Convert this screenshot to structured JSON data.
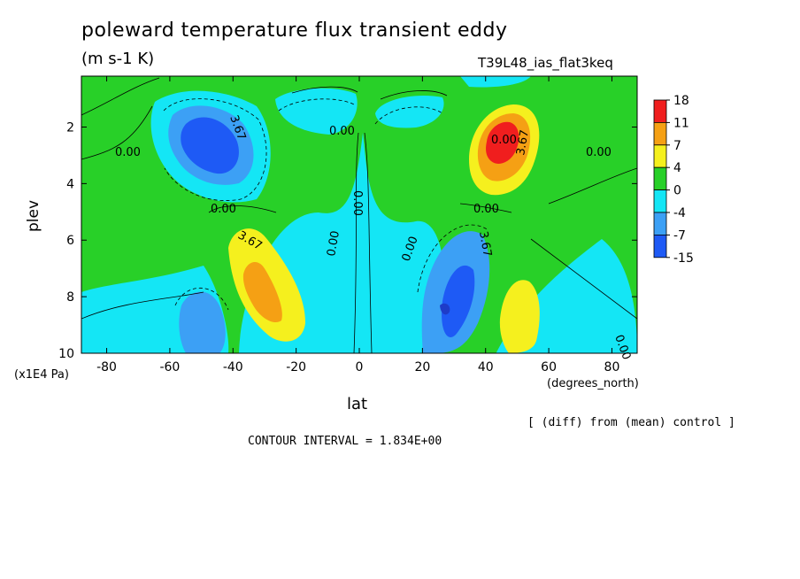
{
  "title": "poleward temperature flux transient eddy",
  "units": "(m s-1 K)",
  "experiment": "T39L48_ias_flat3keq",
  "footer": {
    "contour_interval": "CONTOUR INTERVAL = 1.834E+00",
    "diff_note": "[ (diff) from (mean) control ]"
  },
  "colors": {
    "red": "#f01e1e",
    "orange": "#f5a014",
    "yellow": "#f5f01e",
    "green": "#28d028",
    "cyan": "#14e6f5",
    "lightblue": "#3ca0f5",
    "blue": "#1e5af5",
    "darkblue": "#1e3cc8"
  },
  "chart_data": {
    "type": "heatmap",
    "subtype": "filled contour",
    "xlabel": "lat",
    "xunits": "(degrees_north)",
    "ylabel": "plev",
    "yunits": "(x1E4 Pa)",
    "xlim": [
      -88,
      88
    ],
    "ylim": [
      10,
      0.2
    ],
    "xticks": [
      -80,
      -60,
      -40,
      -20,
      0,
      20,
      40,
      60,
      80
    ],
    "yticks": [
      2,
      4,
      6,
      8,
      10
    ],
    "contour_interval": 1.834,
    "contour_labels": [
      "0.00",
      "0.00",
      "0.00",
      "3.67",
      "0.00",
      "3.67",
      "0.00",
      "0.00",
      "0.00",
      "3.67",
      "3.67",
      "0.00",
      "0.00",
      "0.00"
    ],
    "colorbar": {
      "levels": [
        18,
        11,
        7,
        4,
        0,
        -4,
        -7,
        -15
      ],
      "colors": [
        "#f01e1e",
        "#f5a014",
        "#f5f01e",
        "#28d028",
        "#14e6f5",
        "#3ca0f5",
        "#1e5af5"
      ]
    },
    "features": [
      {
        "name": "SH upper negative core",
        "lat": -47,
        "plev": 2.7,
        "value": -12
      },
      {
        "name": "SH lower positive core",
        "lat": -33,
        "plev": 7.8,
        "value": 9
      },
      {
        "name": "SH low-latitude negative",
        "lat": -50,
        "plev": 9,
        "value": -5
      },
      {
        "name": "NH upper positive core",
        "lat": 46,
        "plev": 2.6,
        "value": 15
      },
      {
        "name": "NH lower negative core",
        "lat": 30,
        "plev": 8,
        "value": -10
      },
      {
        "name": "NH lower positive",
        "lat": 52,
        "plev": 8.8,
        "value": 6
      }
    ]
  }
}
